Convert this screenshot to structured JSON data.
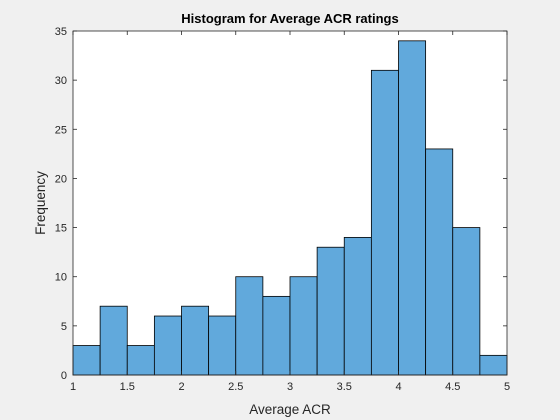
{
  "chart_data": {
    "type": "bar",
    "title": "Histogram for Average ACR ratings",
    "xlabel": "Average ACR",
    "ylabel": "Frequency",
    "bin_edges": [
      1,
      1.25,
      1.5,
      1.75,
      2,
      2.25,
      2.5,
      2.75,
      3,
      3.25,
      3.5,
      3.75,
      4,
      4.25,
      4.5,
      4.75,
      5
    ],
    "values": [
      3,
      7,
      3,
      6,
      7,
      6,
      10,
      8,
      10,
      13,
      14,
      31,
      34,
      23,
      15,
      2
    ],
    "xlim": [
      1,
      5
    ],
    "ylim": [
      0,
      35
    ],
    "xticks": [
      "1",
      "1.5",
      "2",
      "2.5",
      "3",
      "3.5",
      "4",
      "4.5",
      "5"
    ],
    "yticks": [
      "0",
      "5",
      "10",
      "15",
      "20",
      "25",
      "30",
      "35"
    ],
    "grid": false,
    "legend": "none",
    "bar_color": "#61a9dc",
    "edge_color": "#000000",
    "axes_background": "#ffffff"
  }
}
